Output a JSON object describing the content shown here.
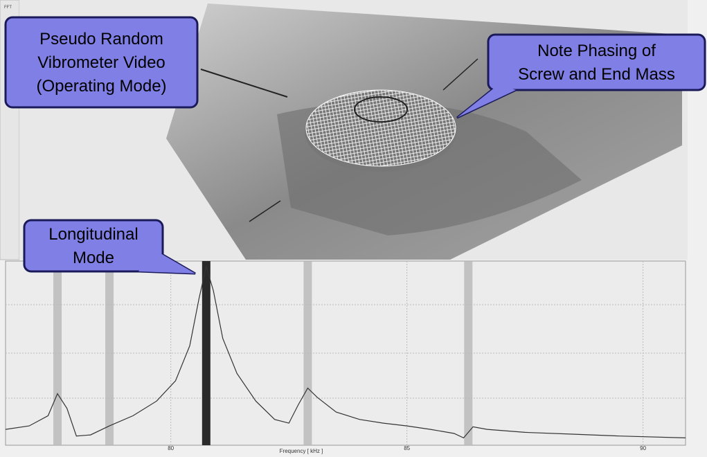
{
  "toolbar": {
    "label": "FFT"
  },
  "callouts": [
    {
      "lines": [
        "Pseudo Random",
        "Vibrometer Video",
        "(Operating Mode)"
      ]
    },
    {
      "lines": [
        "Note Phasing of",
        "Screw and End Mass"
      ]
    },
    {
      "lines": [
        "Longitudinal",
        "Mode"
      ]
    }
  ],
  "chart_data": {
    "type": "line",
    "x_label": "Frequency [ kHz ]",
    "xlim": [
      76.5,
      90.9
    ],
    "xticks": [
      80,
      85,
      90
    ],
    "ylim": [
      0,
      100
    ],
    "grid": true,
    "markers": [
      77.6,
      78.7,
      80.75,
      82.9,
      86.3
    ],
    "x": [
      76.5,
      77.0,
      77.4,
      77.6,
      77.8,
      78.0,
      78.3,
      78.7,
      79.2,
      79.7,
      80.1,
      80.4,
      80.6,
      80.75,
      80.9,
      81.1,
      81.4,
      81.8,
      82.2,
      82.5,
      82.7,
      82.9,
      83.1,
      83.5,
      84.0,
      84.5,
      85.0,
      85.5,
      86.0,
      86.2,
      86.4,
      86.7,
      87.5,
      88.5,
      89.5,
      90.9
    ],
    "series": [
      {
        "color": "#333333",
        "values": [
          8.6,
          10.5,
          16,
          28,
          20,
          5,
          5.6,
          10.5,
          16,
          24,
          35,
          54,
          80,
          97,
          84,
          58,
          39,
          24,
          14,
          12,
          22,
          31,
          26,
          18,
          14,
          12,
          10.5,
          8.6,
          6.4,
          4,
          10,
          8.6,
          7,
          6,
          5,
          4
        ]
      }
    ]
  }
}
